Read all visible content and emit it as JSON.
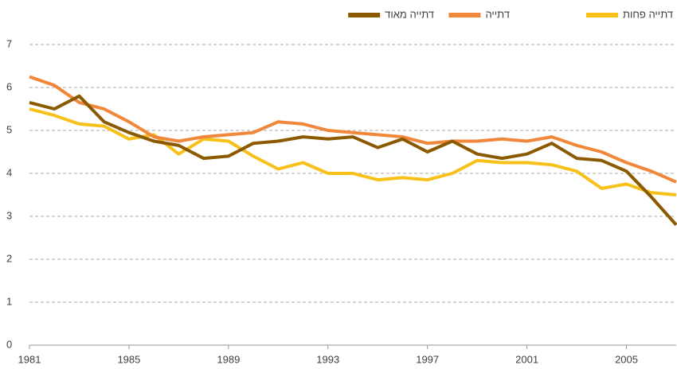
{
  "chart_data": {
    "type": "line",
    "x": [
      1981,
      1982,
      1983,
      1984,
      1985,
      1986,
      1987,
      1988,
      1989,
      1990,
      1991,
      1992,
      1993,
      1994,
      1995,
      1996,
      1997,
      1998,
      1999,
      2000,
      2001,
      2002,
      2003,
      2004,
      2005,
      2006,
      2007
    ],
    "series": [
      {
        "name": "דתייה פחות",
        "color": "#f7c11a",
        "values": [
          5.5,
          5.35,
          5.15,
          5.1,
          4.8,
          4.9,
          4.45,
          4.8,
          4.75,
          4.4,
          4.1,
          4.25,
          4.0,
          4.0,
          3.85,
          3.9,
          3.85,
          4.0,
          4.3,
          4.25,
          4.25,
          4.2,
          4.05,
          3.65,
          3.75,
          3.55,
          3.5
        ]
      },
      {
        "name": "דתייה",
        "color": "#f0873a",
        "values": [
          6.25,
          6.05,
          5.65,
          5.5,
          5.2,
          4.85,
          4.75,
          4.85,
          4.9,
          4.95,
          5.2,
          5.15,
          5.0,
          4.95,
          4.9,
          4.85,
          4.7,
          4.75,
          4.75,
          4.8,
          4.75,
          4.85,
          4.65,
          4.5,
          4.25,
          4.05,
          3.8
        ]
      },
      {
        "name": "דתייה מאוד",
        "color": "#8b5a00",
        "values": [
          5.65,
          5.5,
          5.8,
          5.2,
          4.95,
          4.75,
          4.65,
          4.35,
          4.4,
          4.7,
          4.75,
          4.85,
          4.8,
          4.85,
          4.6,
          4.8,
          4.5,
          4.75,
          4.45,
          4.35,
          4.45,
          4.7,
          4.35,
          4.3,
          4.05,
          3.45,
          2.8
        ]
      }
    ],
    "xlim": [
      1981,
      2007
    ],
    "xticks": [
      1981,
      1985,
      1989,
      1993,
      1997,
      2001,
      2005
    ],
    "ylim": [
      0,
      7
    ],
    "yticks": [
      0,
      1,
      2,
      3,
      4,
      5,
      6,
      7
    ],
    "grid": true,
    "legend": "top"
  }
}
